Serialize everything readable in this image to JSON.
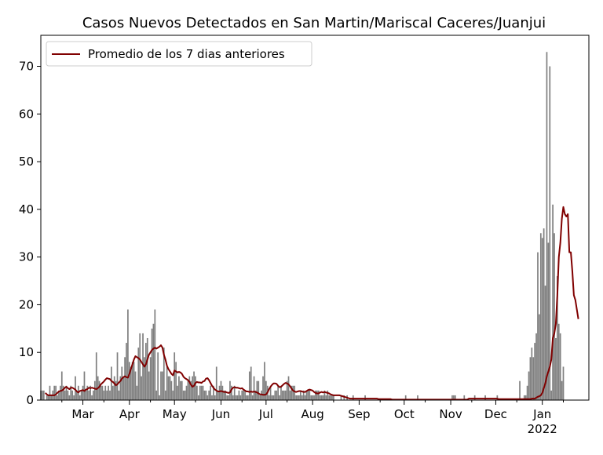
{
  "chart_data": {
    "type": "bar",
    "title": "Casos Nuevos Detectados en San Martin/Mariscal Caceres/Juanjui",
    "xlabel": "",
    "ylabel": "",
    "x_range": [
      "2021-02-01",
      "2022-02-01"
    ],
    "ylim": [
      0,
      76.5
    ],
    "y_ticks": [
      0,
      10,
      20,
      30,
      40,
      50,
      60,
      70
    ],
    "x_ticks": [
      {
        "date": "2021-03-01",
        "label": "Mar"
      },
      {
        "date": "2021-04-01",
        "label": "Apr"
      },
      {
        "date": "2021-05-01",
        "label": "May"
      },
      {
        "date": "2021-06-01",
        "label": "Jun"
      },
      {
        "date": "2021-07-01",
        "label": "Jul"
      },
      {
        "date": "2021-08-01",
        "label": "Aug"
      },
      {
        "date": "2021-09-01",
        "label": "Sep"
      },
      {
        "date": "2021-10-01",
        "label": "Oct"
      },
      {
        "date": "2021-11-01",
        "label": "Nov"
      },
      {
        "date": "2021-12-01",
        "label": "Dec"
      },
      {
        "date": "2022-01-01",
        "label": "Jan",
        "sublabel": "2022"
      }
    ],
    "grid": false,
    "legend_position": "upper-left",
    "colors": {
      "bars": "#808080",
      "line": "#800000"
    },
    "series": [
      {
        "kind": "bar",
        "start_date": "2021-02-01",
        "values": [
          2,
          2,
          2,
          0,
          1,
          1,
          3,
          1,
          2,
          3,
          3,
          1,
          2,
          3,
          6,
          3,
          2,
          3,
          2,
          1,
          3,
          2,
          1,
          5,
          2,
          3,
          1,
          2,
          3,
          6,
          2,
          3,
          2,
          3,
          1,
          2,
          4,
          10,
          5,
          4,
          3,
          3,
          2,
          3,
          2,
          3,
          2,
          7,
          3,
          5,
          4,
          10,
          2,
          5,
          7,
          5,
          9,
          12,
          19,
          8,
          7,
          8,
          8,
          6,
          3,
          11,
          14,
          5,
          14,
          9,
          12,
          13,
          6,
          9,
          15,
          16,
          19,
          2,
          10,
          1,
          6,
          6,
          11,
          2,
          7,
          5,
          5,
          4,
          2,
          10,
          8,
          3,
          5,
          4,
          4,
          2,
          2,
          3,
          4,
          5,
          4,
          5,
          6,
          5,
          3,
          1,
          3,
          3,
          3,
          2,
          2,
          1,
          2,
          3,
          1,
          3,
          1,
          7,
          2,
          3,
          4,
          3,
          2,
          2,
          1,
          1,
          4,
          3,
          1,
          3,
          1,
          1,
          2,
          1,
          2,
          2,
          2,
          1,
          1,
          6,
          7,
          1,
          5,
          2,
          4,
          4,
          1,
          2,
          5,
          8,
          4,
          3,
          1,
          3,
          1,
          1,
          2,
          2,
          3,
          1,
          3,
          2,
          2,
          2,
          4,
          5,
          2,
          3,
          3,
          3,
          1,
          1,
          1,
          2,
          1,
          2,
          1,
          2,
          2,
          2,
          1,
          1,
          1,
          2,
          2,
          2,
          1,
          1,
          1,
          2,
          1,
          2,
          1,
          1,
          1,
          1,
          0,
          0,
          0,
          0,
          1,
          0,
          1,
          0,
          1,
          0,
          0,
          0,
          1,
          0,
          0,
          0,
          0,
          0,
          0,
          0,
          1,
          0,
          0,
          0,
          0,
          0,
          0,
          0,
          0,
          0,
          0,
          0,
          0,
          0,
          0,
          0,
          0,
          0,
          0,
          0,
          0,
          0,
          0,
          0,
          0,
          0,
          0,
          1,
          0,
          0,
          0,
          0,
          0,
          0,
          0,
          1,
          0,
          0,
          0,
          0,
          0,
          0,
          0,
          0,
          0,
          0,
          0,
          0,
          0,
          0,
          0,
          0,
          0,
          0,
          0,
          0,
          0,
          0,
          1,
          1,
          1,
          0,
          0,
          0,
          0,
          0,
          1,
          0,
          0,
          0,
          0,
          0,
          0,
          1,
          0,
          0,
          0,
          0,
          0,
          0,
          1,
          0,
          0,
          0,
          0,
          0,
          0,
          0,
          1,
          0,
          0,
          0,
          0,
          0,
          0,
          0,
          0,
          0,
          0,
          0,
          0,
          0,
          0,
          4,
          0,
          0,
          1,
          1,
          3,
          6,
          9,
          11,
          9,
          12,
          14,
          31,
          18,
          35,
          34,
          36,
          24,
          73,
          33,
          70,
          2,
          41,
          35,
          13,
          26,
          16,
          14,
          4,
          7
        ]
      },
      {
        "kind": "line",
        "name": "Promedio de los 7 dias anteriores",
        "start_date": "2021-02-04",
        "values": [
          1.5,
          1.2,
          1,
          1,
          1,
          1,
          1,
          1.2,
          1.5,
          1.8,
          1.9,
          2,
          2.2,
          2.6,
          2.8,
          2.5,
          2.3,
          2.6,
          2.6,
          2.4,
          2.2,
          1.8,
          1.6,
          1.9,
          2,
          2.1,
          1.9,
          2.2,
          2.3,
          2.6,
          2.5,
          2.6,
          2.5,
          2.4,
          2.3,
          2.5,
          2.8,
          3.3,
          3.6,
          3.9,
          4.3,
          4.6,
          4.5,
          4.4,
          4,
          3.8,
          3.5,
          3.1,
          3.3,
          3.7,
          4,
          4.5,
          4.8,
          5,
          4.8,
          4.7,
          5.5,
          6.5,
          7.5,
          8.5,
          9.2,
          9,
          8.8,
          8.5,
          8,
          7.5,
          7,
          7.5,
          8.5,
          9.5,
          10,
          10.5,
          10.8,
          11,
          10.8,
          11,
          11.2,
          11.5,
          11,
          9.5,
          8.5,
          7.2,
          6.5,
          6,
          5.5,
          5.2,
          6.2,
          6,
          5.8,
          5.9,
          5.8,
          5.5,
          4.9,
          4.6,
          4.4,
          4.2,
          3.8,
          3.2,
          2.8,
          3,
          3.6,
          3.8,
          3.7,
          3.7,
          3.6,
          3.9,
          4,
          4.5,
          4.6,
          4.2,
          3.6,
          3,
          2.6,
          2.2,
          2,
          1.8,
          1.8,
          1.9,
          1.8,
          1.7,
          1.7,
          1.6,
          1.5,
          1.6,
          2.2,
          2.6,
          2.7,
          2.6,
          2.6,
          2.5,
          2.4,
          2.5,
          2.2,
          2,
          1.8,
          1.8,
          1.7,
          1.8,
          1.7,
          1.8,
          1.7,
          1.6,
          1.4,
          1.2,
          1.2,
          1.1,
          1.1,
          1.2,
          1.6,
          2.3,
          2.8,
          3.2,
          3.5,
          3.5,
          3.4,
          3,
          2.7,
          2.8,
          3.1,
          3.4,
          3.6,
          3.5,
          3.3,
          2.9,
          2.4,
          2,
          1.8,
          1.7,
          1.8,
          1.9,
          1.9,
          1.8,
          1.7,
          1.7,
          1.9,
          2.1,
          2.2,
          2.1,
          2,
          1.7,
          1.5,
          1.4,
          1.4,
          1.6,
          1.7,
          1.6,
          1.7,
          1.6,
          1.5,
          1.4,
          1.2,
          1.1,
          1,
          1,
          1,
          1,
          1,
          0.9,
          0.8,
          0.7,
          0.6,
          0.5,
          0.4,
          0.3,
          0.3,
          0.3,
          0.3,
          0.3,
          0.3,
          0.3,
          0.3,
          0.3,
          0.3,
          0.3,
          0.3,
          0.3,
          0.3,
          0.3,
          0.3,
          0.3,
          0.3,
          0.3,
          0.2,
          0.2,
          0.2,
          0.2,
          0.2,
          0.2,
          0.2,
          0.2,
          0.2,
          0.1,
          0.1,
          0.1,
          0.1,
          0.1,
          0.1,
          0.1,
          0.1,
          0.1,
          0.1,
          0.1,
          0.1,
          0.1,
          0.1,
          0.1,
          0.1,
          0.1,
          0.1,
          0.1,
          0.1,
          0.1,
          0.1,
          0.1,
          0.1,
          0.1,
          0.1,
          0.1,
          0.1,
          0.1,
          0.1,
          0.1,
          0.1,
          0.1,
          0.1,
          0.1,
          0.1,
          0.1,
          0.1,
          0.1,
          0.1,
          0.1,
          0.1,
          0.1,
          0.1,
          0.1,
          0.1,
          0.1,
          0.1,
          0.1,
          0.1,
          0.1,
          0.3,
          0.3,
          0.3,
          0.3,
          0.3,
          0.3,
          0.3,
          0.3,
          0.3,
          0.3,
          0.3,
          0.3,
          0.3,
          0.3,
          0.3,
          0.3,
          0.3,
          0.3,
          0.3,
          0.3,
          0.2,
          0.2,
          0.2,
          0.2,
          0.2,
          0.2,
          0.2,
          0.2,
          0.2,
          0.2,
          0.2,
          0.2,
          0.2,
          0.2,
          0.2,
          0.2,
          0.2,
          0.2,
          0.2,
          0.2,
          0.2,
          0.2,
          0.3,
          0.3,
          0.3,
          0.5,
          0.7,
          0.8,
          1,
          1.5,
          2.5,
          3.5,
          5,
          6,
          7,
          8.5,
          13,
          14,
          16,
          22,
          30,
          33,
          38,
          40.5,
          39,
          38.5,
          39,
          31,
          31,
          27,
          22,
          21,
          19,
          17
        ]
      }
    ]
  }
}
